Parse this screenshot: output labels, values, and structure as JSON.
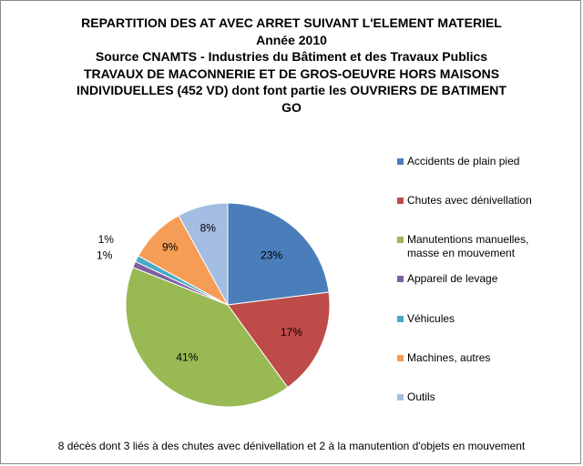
{
  "chart_data": {
    "type": "pie",
    "title_lines": [
      "REPARTITION DES AT AVEC ARRET SUIVANT L'ELEMENT MATERIEL",
      "Année 2010",
      "Source CNAMTS - Industries du Bâtiment et des Travaux Publics",
      "TRAVAUX DE MACONNERIE ET DE GROS-OEUVRE HORS MAISONS",
      "INDIVIDUELLES (452 VD) dont font partie les OUVRIERS DE BATIMENT",
      "GO"
    ],
    "legend_position": "right",
    "slices": [
      {
        "name": "Accidents de plain pied",
        "value": 23,
        "label": "23%",
        "color": "#4a7ebb"
      },
      {
        "name": "Chutes avec dénivellation",
        "value": 17,
        "label": "17%",
        "color": "#be4b48"
      },
      {
        "name": "Manutentions manuelles, masse en mouvement",
        "value": 41,
        "label": "41%",
        "color": "#98b954"
      },
      {
        "name": "Appareil de levage",
        "value": 1,
        "label": "1%",
        "color": "#7d60a0"
      },
      {
        "name": "Véhicules",
        "value": 1,
        "label": "1%",
        "color": "#46aac5"
      },
      {
        "name": "Machines, autres",
        "value": 9,
        "label": "9%",
        "color": "#f59d56"
      },
      {
        "name": "Outils",
        "value": 8,
        "label": "8%",
        "color": "#a4bde2"
      }
    ],
    "footnote": "8 décès dont 3 liés à des chutes avec dénivellation et 2 à la manutention d'objets en mouvement"
  }
}
